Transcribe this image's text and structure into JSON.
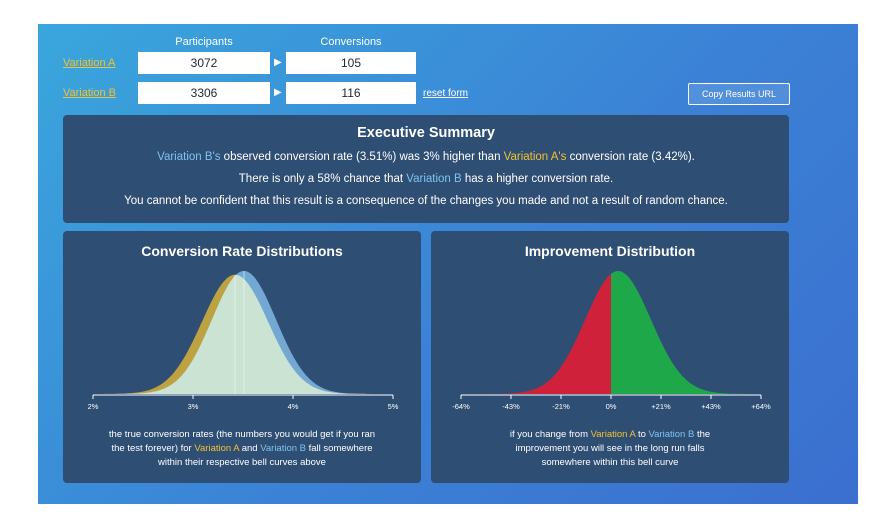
{
  "header": {
    "participants_label": "Participants",
    "conversions_label": "Conversions"
  },
  "variations": [
    {
      "name": "Variation A",
      "participants": "3072",
      "conversions": "105"
    },
    {
      "name": "Variation B",
      "participants": "3306",
      "conversions": "116"
    }
  ],
  "reset_label": "reset form",
  "copy_label": "Copy Results URL",
  "summary": {
    "title": "Executive Summary",
    "l1_b": "Variation B's",
    "l1_mid": " observed conversion rate (3.51%) was 3% higher than ",
    "l1_a": "Variation A's",
    "l1_end": " conversion rate (3.42%).",
    "l2_start": "There is only a 58% chance that ",
    "l2_b": "Variation B",
    "l2_end": " has a higher conversion rate.",
    "l3": "You cannot be confident that this result is a consequence of the changes you made and not a result of random chance."
  },
  "conversion_panel": {
    "title": "Conversion Rate Distributions",
    "caption_1": "the true conversion rates (the numbers you would get if you ran",
    "caption_2a": "the test forever) for ",
    "caption_2b": "Variation A",
    "caption_2c": " and ",
    "caption_2d": "Variation B",
    "caption_2e": "  fall somewhere",
    "caption_3": "within their respective bell curves above"
  },
  "improvement_panel": {
    "title": "Improvement Distribution",
    "caption_1a": "if you change from ",
    "caption_1b": "Variation A",
    "caption_1c": " to ",
    "caption_1d": "Variation B",
    "caption_1e": " the",
    "caption_2": "improvement you will see in the long run falls",
    "caption_3": "somewhere within this bell curve"
  },
  "colors": {
    "variation_a": "#f1c232",
    "variation_b": "#7fc3f0",
    "negative": "#d0213b",
    "positive": "#1fa84a"
  },
  "chart_data": [
    {
      "type": "area",
      "title": "Conversion Rate Distributions",
      "x_ticks": [
        "2%",
        "3%",
        "4%",
        "5%"
      ],
      "xlim": [
        2,
        5
      ],
      "series": [
        {
          "name": "Variation A",
          "mean": 3.42,
          "sd": 0.33,
          "color": "#f1c232"
        },
        {
          "name": "Variation B",
          "mean": 3.51,
          "sd": 0.32,
          "color": "#7fc3f0"
        }
      ]
    },
    {
      "type": "area",
      "title": "Improvement Distribution",
      "x_ticks": [
        "-64%",
        "-43%",
        "-21%",
        "0%",
        "+21%",
        "+43%",
        "+64%"
      ],
      "xlim": [
        -64,
        64
      ],
      "series": [
        {
          "mean": 3,
          "sd": 14
        }
      ]
    }
  ]
}
